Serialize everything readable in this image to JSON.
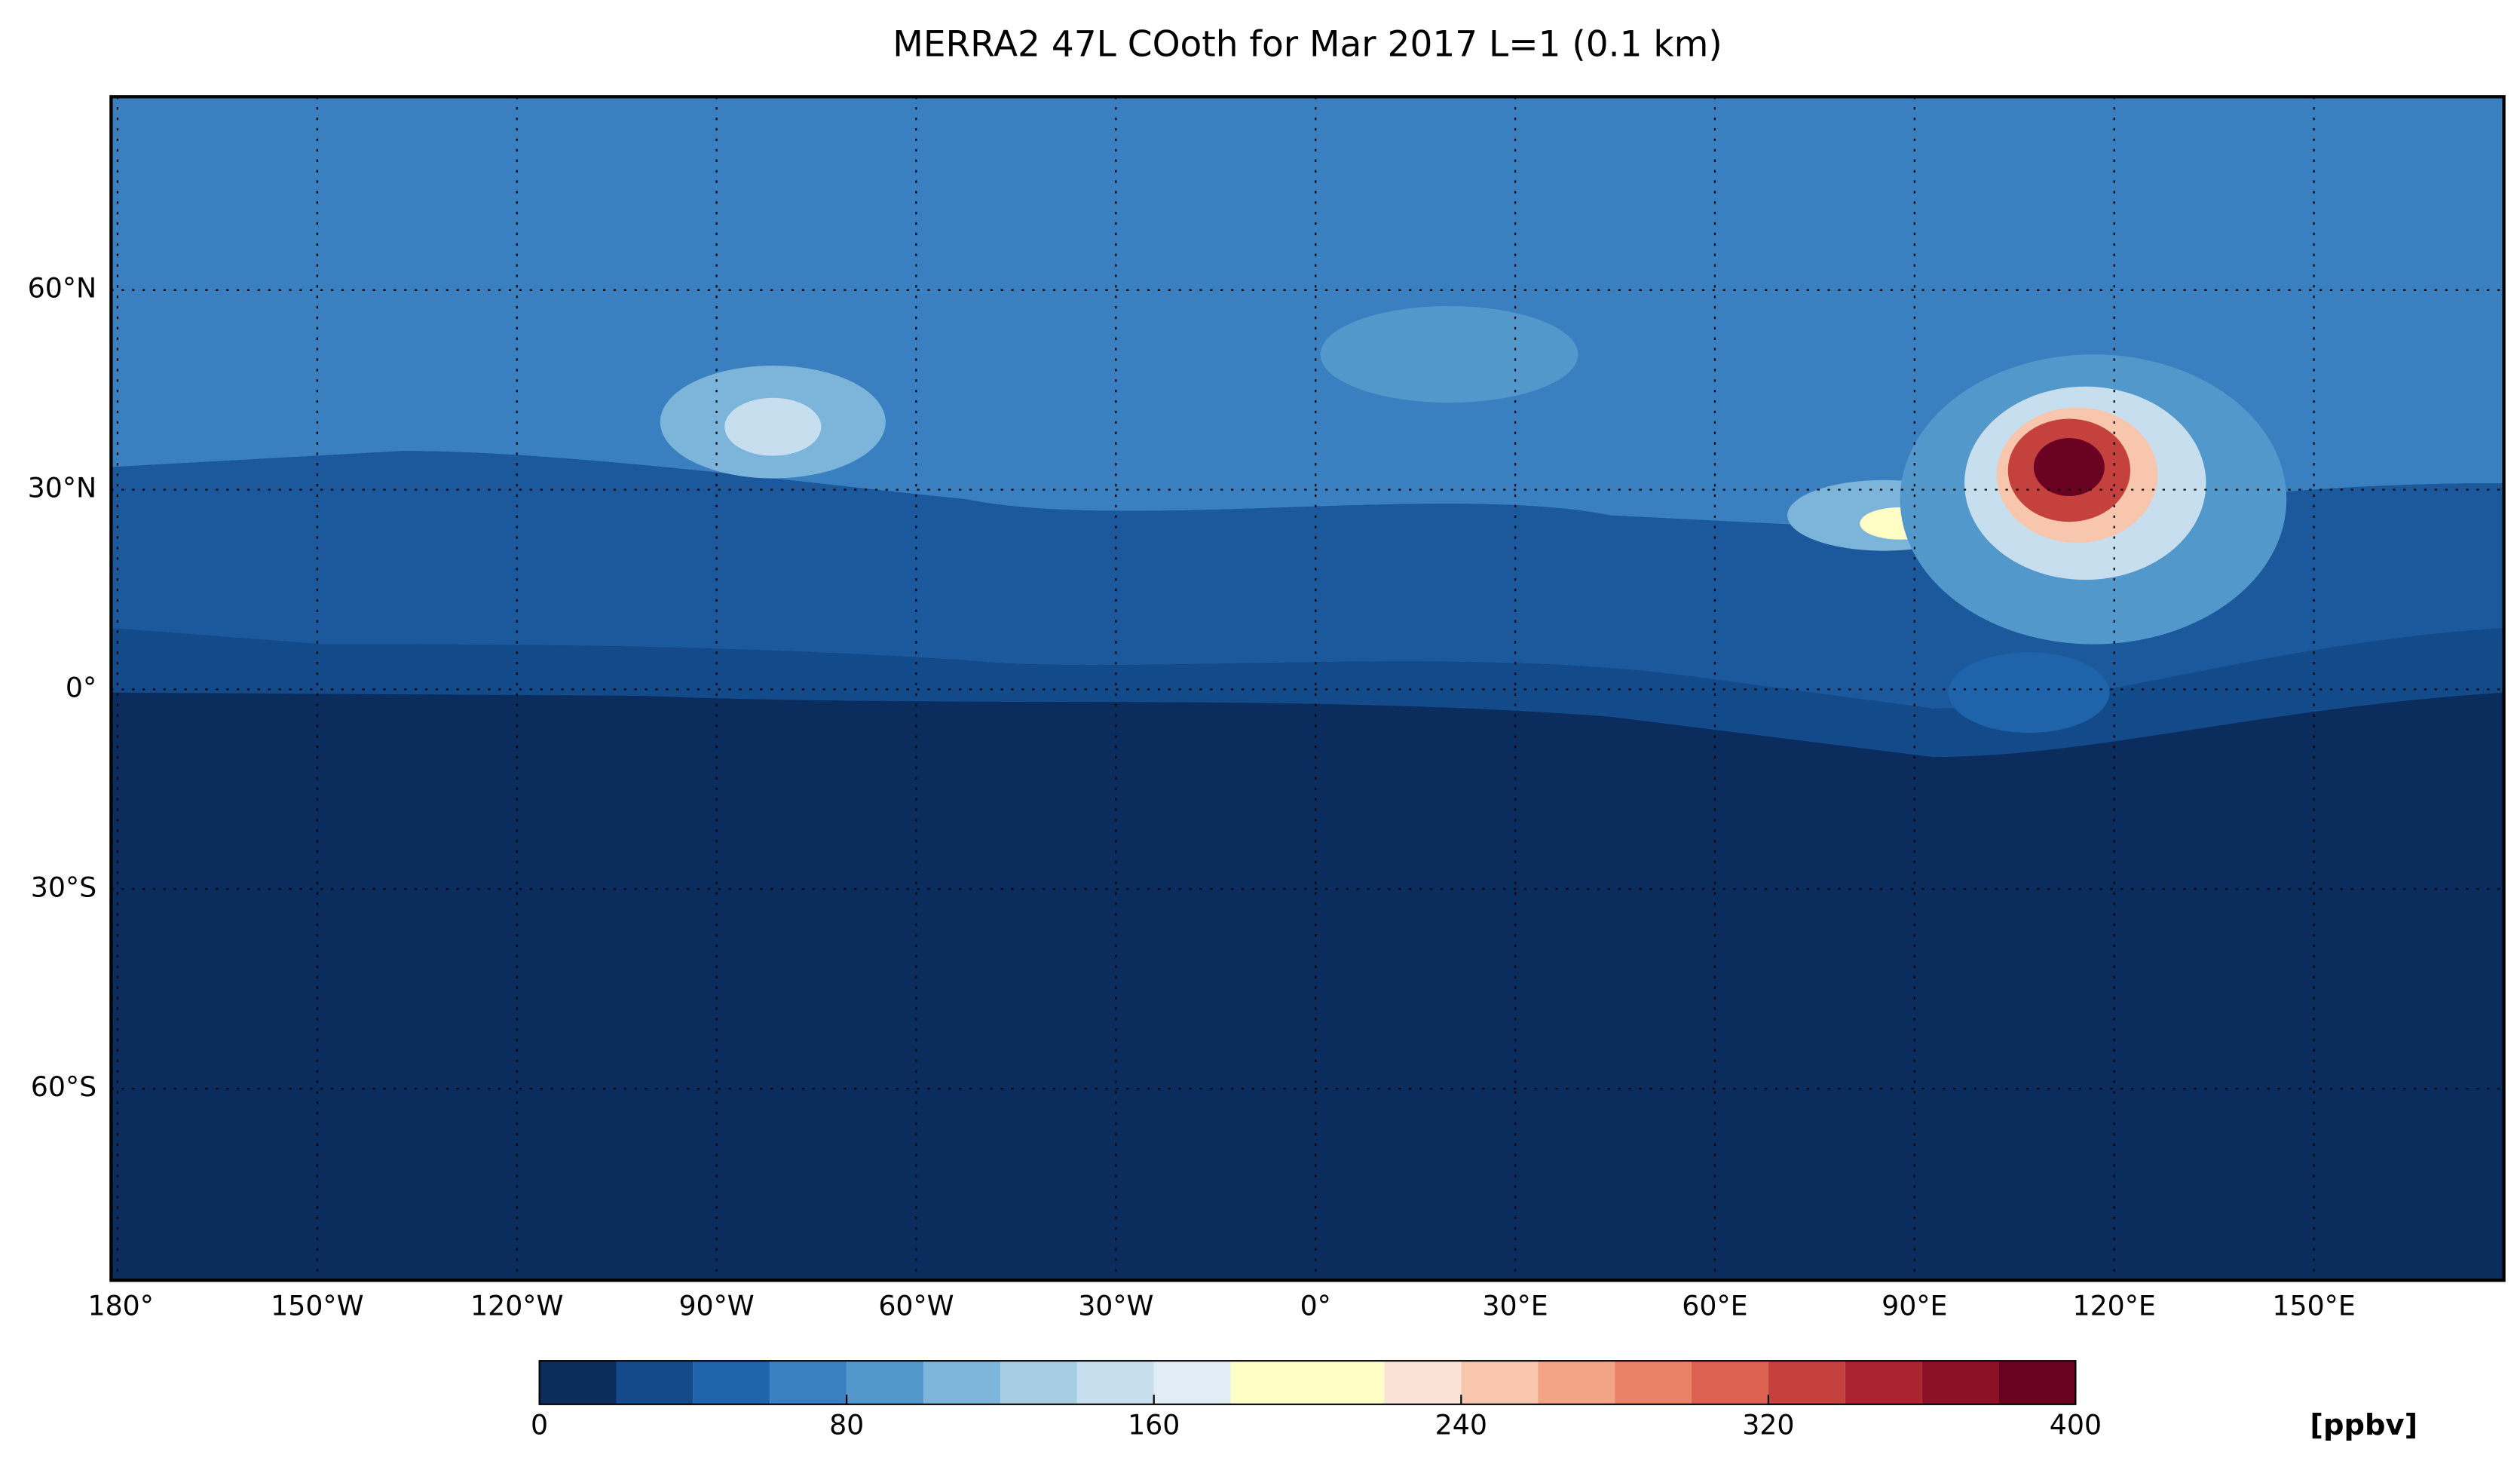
{
  "map": {
    "title": "MERRA2 47L COoth for Mar 2017 L=1 (0.1 km)",
    "lon_ticks": [
      {
        "value": -180,
        "label": "180°"
      },
      {
        "value": -150,
        "label": "150°W"
      },
      {
        "value": -120,
        "label": "120°W"
      },
      {
        "value": -90,
        "label": "90°W"
      },
      {
        "value": -60,
        "label": "60°W"
      },
      {
        "value": -30,
        "label": "30°W"
      },
      {
        "value": 0,
        "label": "0°"
      },
      {
        "value": 30,
        "label": "30°E"
      },
      {
        "value": 60,
        "label": "60°E"
      },
      {
        "value": 90,
        "label": "90°E"
      },
      {
        "value": 120,
        "label": "120°E"
      },
      {
        "value": 150,
        "label": "150°E"
      }
    ],
    "lat_ticks": [
      {
        "value": 60,
        "label": "60°N"
      },
      {
        "value": 30,
        "label": "30°N"
      },
      {
        "value": 0,
        "label": "0°"
      },
      {
        "value": -30,
        "label": "30°S"
      },
      {
        "value": -60,
        "label": "60°S"
      }
    ],
    "colorbar": {
      "levels": [
        0,
        20,
        40,
        60,
        80,
        100,
        120,
        140,
        160,
        180,
        220,
        240,
        260,
        280,
        300,
        320,
        340,
        360,
        380,
        400
      ],
      "colors": [
        "#0b2d5e",
        "#134a8a",
        "#1f64ab",
        "#3a7fbf",
        "#5398cb",
        "#7cb4da",
        "#a6cde3",
        "#c6deed",
        "#e1edf4",
        "#fffec5",
        "#fbe2d6",
        "#f8c6ad",
        "#f3a486",
        "#e98267",
        "#dc6150",
        "#c5413d",
        "#ac2330",
        "#8c1127",
        "#6a0322"
      ],
      "ticks": [
        0,
        80,
        160,
        240,
        320,
        400
      ],
      "unit": "[ppbv]"
    }
  }
}
